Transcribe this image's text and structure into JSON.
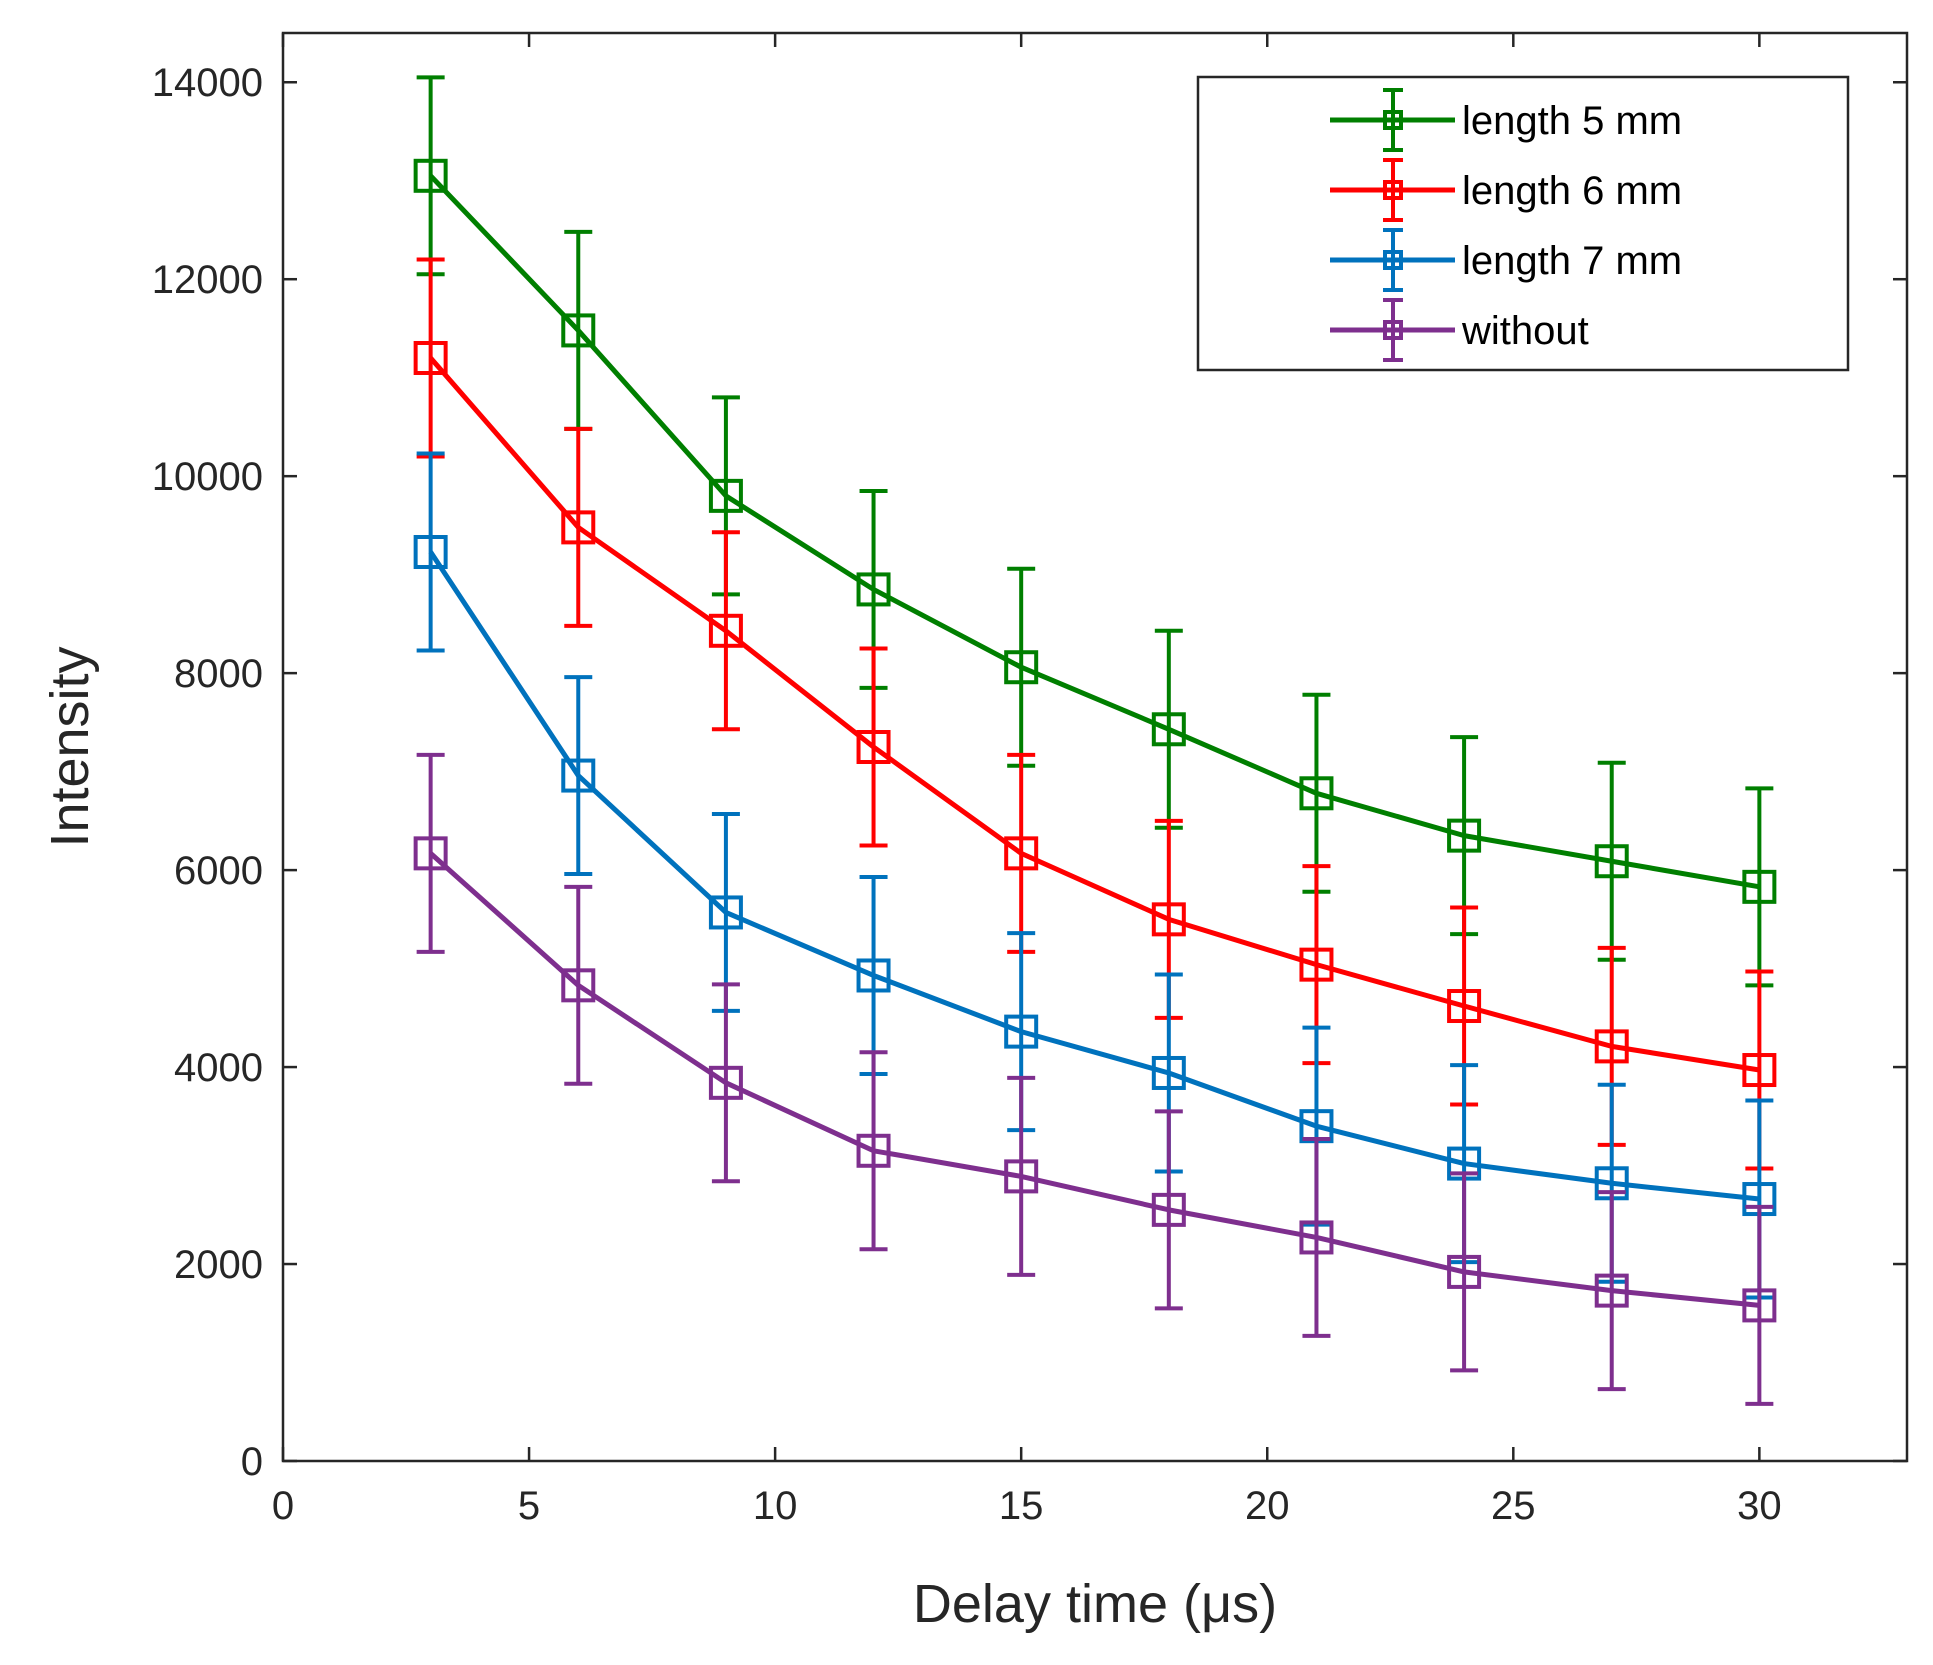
{
  "chart_data": {
    "type": "line",
    "xlabel": "Delay time (μs)",
    "ylabel": "Intensity",
    "xlim": [
      0,
      33
    ],
    "ylim": [
      0,
      14500
    ],
    "xticks": [
      0,
      5,
      10,
      15,
      20,
      25,
      30
    ],
    "yticks": [
      0,
      2000,
      4000,
      6000,
      8000,
      10000,
      12000,
      14000
    ],
    "x": [
      3,
      6,
      9,
      12,
      15,
      18,
      21,
      24,
      27,
      30
    ],
    "error": 1000,
    "legend_position": "top-right",
    "series": [
      {
        "name": "length 5 mm",
        "color": "#007f00",
        "values": [
          13050,
          11480,
          9800,
          8850,
          8060,
          7430,
          6780,
          6350,
          6090,
          5830
        ]
      },
      {
        "name": "length 6 mm",
        "color": "#ff0000",
        "values": [
          11200,
          9480,
          8430,
          7250,
          6170,
          5500,
          5040,
          4620,
          4210,
          3970
        ]
      },
      {
        "name": "length 7 mm",
        "color": "#0072bd",
        "values": [
          9230,
          6960,
          5570,
          4930,
          4360,
          3940,
          3400,
          3020,
          2820,
          2660
        ]
      },
      {
        "name": "without",
        "color": "#7e2f8e",
        "values": [
          6170,
          4830,
          3840,
          3150,
          2890,
          2550,
          2270,
          1920,
          1730,
          1580
        ]
      }
    ]
  }
}
